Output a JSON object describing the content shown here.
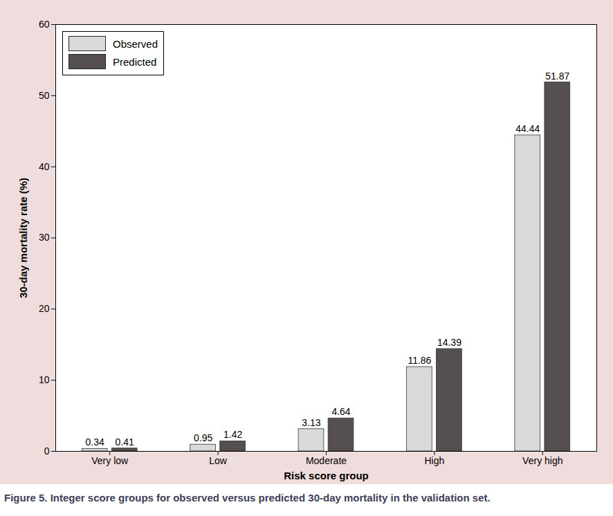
{
  "chart_data": {
    "type": "bar",
    "caption": "Figure 5. Integer score groups for observed versus predicted 30-day mortality in the validation set.",
    "x_label": "Risk score group",
    "y_label": "30-day mortality rate (%)",
    "categories": [
      "Very low",
      "Low",
      "Moderate",
      "High",
      "Very high"
    ],
    "series": [
      {
        "name": "Observed",
        "color": "#d9d9d9",
        "values": [
          0.34,
          0.95,
          3.13,
          11.86,
          44.44
        ]
      },
      {
        "name": "Predicted",
        "color": "#55504f",
        "values": [
          0.41,
          1.42,
          4.64,
          14.39,
          51.87
        ]
      }
    ],
    "ylim": [
      0,
      60
    ],
    "yticks": [
      0,
      10,
      20,
      30,
      40,
      50,
      60
    ],
    "data_labels": true,
    "legend": "top-left",
    "grid": false
  }
}
